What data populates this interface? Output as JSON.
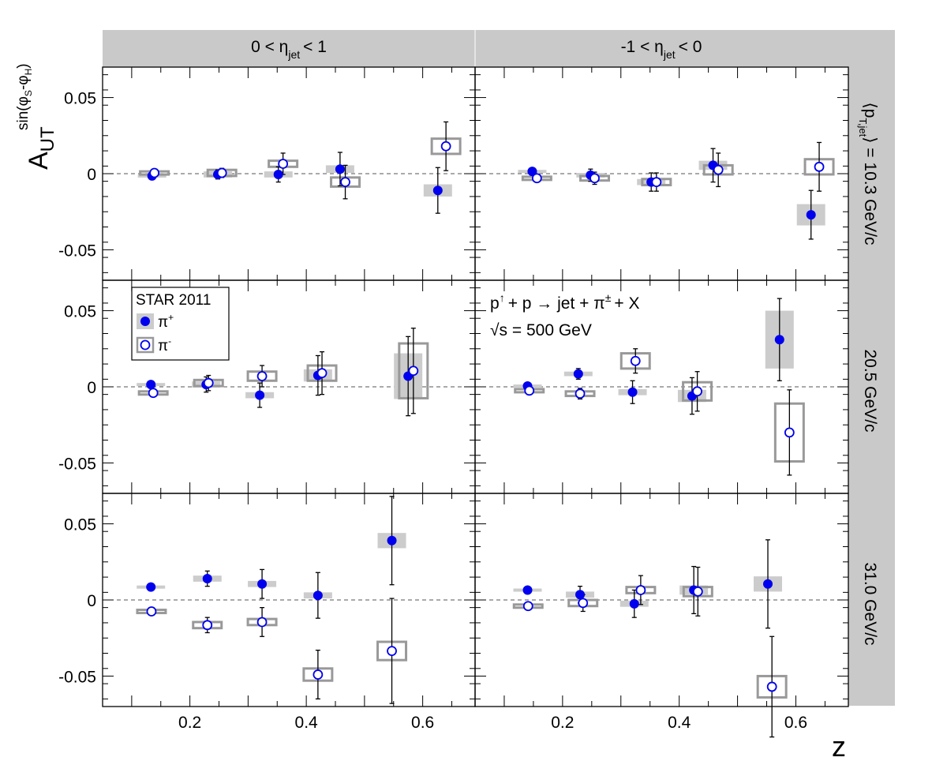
{
  "chart_data": {
    "type": "scatter",
    "experiment": "STAR 2011",
    "process_text": {
      "p1": "p",
      "p1_sup": "↑",
      "rest": "+ p → jet + π",
      "pi_sup": "±",
      "end": "+ X",
      "sqrts": "√s = 500 GeV"
    },
    "y_label": {
      "main": "A",
      "sub": "UT",
      "sup": "sin(φ",
      "sup_s": "S",
      "sup_mid": "-φ",
      "sup_h": "H",
      "sup_end": ")"
    },
    "x_label": "z",
    "xlim": [
      0.05,
      0.69
    ],
    "ylim": [
      -0.07,
      0.07
    ],
    "x_ticks": [
      0.2,
      0.4,
      0.6
    ],
    "x_tick_labels": [
      "0.2",
      "0.4",
      "0.6"
    ],
    "y_ticks": [
      -0.05,
      0,
      0.05
    ],
    "y_tick_labels": [
      "-0.05",
      "0",
      "0.05"
    ],
    "columns": [
      {
        "pre": "0 < η",
        "sub": "jet",
        "post": "< 1"
      },
      {
        "pre": "-1 < η",
        "sub": "jet",
        "post": "< 0"
      }
    ],
    "right_title": {
      "pre": "⟨p",
      "sub": "T,jet",
      "post": "⟩ = 10.3 GeV/c"
    },
    "rows": [
      {
        "label": "10.3 GeV/c"
      },
      {
        "label": "20.5 GeV/c"
      },
      {
        "label": "31.0 GeV/c"
      }
    ],
    "series": [
      {
        "name": "π",
        "sup": "+",
        "marker": "filled-circle",
        "sys_box": "filled-gray",
        "color": "#0000ee"
      },
      {
        "name": "π",
        "sup": "-",
        "marker": "open-circle",
        "sys_box": "open-gray",
        "color": "#0000ee"
      }
    ],
    "colors": {
      "marker": "#0000ee",
      "sys_fill": "#cccccc",
      "sys_line": "#999999",
      "strip": "#c9c9c9"
    },
    "panels": [
      {
        "row": 0,
        "col": 0,
        "pip": [
          {
            "x": 0.135,
            "y": -0.0015,
            "err": 0.002,
            "sys": 0.001
          },
          {
            "x": 0.248,
            "y": -0.0005,
            "err": 0.003,
            "sys": 0.002
          },
          {
            "x": 0.352,
            "y": -0.0005,
            "err": 0.005,
            "sys": 0.002
          },
          {
            "x": 0.458,
            "y": 0.003,
            "err": 0.011,
            "sys": 0.0025
          },
          {
            "x": 0.626,
            "y": -0.011,
            "err": 0.015,
            "sys": 0.004
          }
        ],
        "pim": [
          {
            "x": 0.139,
            "y": 0.0005,
            "err": 0.002,
            "sys": 0.001
          },
          {
            "x": 0.255,
            "y": 0.0005,
            "err": 0.003,
            "sys": 0.002
          },
          {
            "x": 0.36,
            "y": 0.0065,
            "err": 0.007,
            "sys": 0.002
          },
          {
            "x": 0.467,
            "y": -0.0055,
            "err": 0.011,
            "sys": 0.003
          },
          {
            "x": 0.64,
            "y": 0.018,
            "err": 0.016,
            "sys": 0.005
          }
        ]
      },
      {
        "row": 0,
        "col": 1,
        "pip": [
          {
            "x": 0.148,
            "y": 0.0015,
            "err": 0.002,
            "sys": 0.001
          },
          {
            "x": 0.248,
            "y": -0.001,
            "err": 0.004,
            "sys": 0.0015
          },
          {
            "x": 0.352,
            "y": -0.0055,
            "err": 0.006,
            "sys": 0.002
          },
          {
            "x": 0.458,
            "y": 0.0055,
            "err": 0.011,
            "sys": 0.003
          },
          {
            "x": 0.626,
            "y": -0.027,
            "err": 0.016,
            "sys": 0.007
          }
        ],
        "pim": [
          {
            "x": 0.156,
            "y": -0.003,
            "err": 0.002,
            "sys": 0.001
          },
          {
            "x": 0.255,
            "y": -0.003,
            "err": 0.004,
            "sys": 0.0015
          },
          {
            "x": 0.361,
            "y": -0.0055,
            "err": 0.006,
            "sys": 0.002
          },
          {
            "x": 0.467,
            "y": 0.0025,
            "err": 0.011,
            "sys": 0.003
          },
          {
            "x": 0.64,
            "y": 0.0045,
            "err": 0.016,
            "sys": 0.005
          }
        ]
      },
      {
        "row": 1,
        "col": 0,
        "pip": [
          {
            "x": 0.133,
            "y": 0.0015,
            "err": 0.002,
            "sys": 0.001
          },
          {
            "x": 0.228,
            "y": 0.0015,
            "err": 0.005,
            "sys": 0.002
          },
          {
            "x": 0.32,
            "y": -0.0055,
            "err": 0.008,
            "sys": 0.002
          },
          {
            "x": 0.42,
            "y": 0.0075,
            "err": 0.013,
            "sys": 0.004
          },
          {
            "x": 0.575,
            "y": 0.007,
            "err": 0.026,
            "sys": 0.015
          }
        ],
        "pim": [
          {
            "x": 0.137,
            "y": -0.004,
            "err": 0.002,
            "sys": 0.001
          },
          {
            "x": 0.232,
            "y": 0.0025,
            "err": 0.005,
            "sys": 0.002
          },
          {
            "x": 0.324,
            "y": 0.007,
            "err": 0.007,
            "sys": 0.003
          },
          {
            "x": 0.427,
            "y": 0.009,
            "err": 0.014,
            "sys": 0.005
          },
          {
            "x": 0.584,
            "y": 0.0105,
            "err": 0.028,
            "sys": 0.018
          }
        ]
      },
      {
        "row": 1,
        "col": 1,
        "pip": [
          {
            "x": 0.14,
            "y": 0.0005,
            "err": 0.002,
            "sys": 0.001
          },
          {
            "x": 0.227,
            "y": 0.0085,
            "err": 0.0035,
            "sys": 0.0015
          },
          {
            "x": 0.32,
            "y": -0.0035,
            "err": 0.0075,
            "sys": 0.002
          },
          {
            "x": 0.422,
            "y": -0.006,
            "err": 0.012,
            "sys": 0.004
          },
          {
            "x": 0.572,
            "y": 0.031,
            "err": 0.027,
            "sys": 0.019
          }
        ],
        "pim": [
          {
            "x": 0.143,
            "y": -0.0025,
            "err": 0.002,
            "sys": 0.001
          },
          {
            "x": 0.23,
            "y": -0.0045,
            "err": 0.0035,
            "sys": 0.0015
          },
          {
            "x": 0.325,
            "y": 0.017,
            "err": 0.008,
            "sys": 0.005
          },
          {
            "x": 0.431,
            "y": -0.003,
            "err": 0.013,
            "sys": 0.006
          },
          {
            "x": 0.589,
            "y": -0.03,
            "err": 0.028,
            "sys": 0.019
          }
        ]
      },
      {
        "row": 2,
        "col": 0,
        "pip": [
          {
            "x": 0.133,
            "y": 0.0085,
            "err": 0.002,
            "sys": 0.001
          },
          {
            "x": 0.23,
            "y": 0.014,
            "err": 0.005,
            "sys": 0.002
          },
          {
            "x": 0.324,
            "y": 0.0105,
            "err": 0.0095,
            "sys": 0.002
          },
          {
            "x": 0.42,
            "y": 0.003,
            "err": 0.015,
            "sys": 0.002
          },
          {
            "x": 0.547,
            "y": 0.039,
            "err": 0.029,
            "sys": 0.005
          }
        ],
        "pim": [
          {
            "x": 0.134,
            "y": -0.0075,
            "err": 0.002,
            "sys": 0.001
          },
          {
            "x": 0.23,
            "y": -0.0165,
            "err": 0.005,
            "sys": 0.002
          },
          {
            "x": 0.324,
            "y": -0.0145,
            "err": 0.0095,
            "sys": 0.002
          },
          {
            "x": 0.42,
            "y": -0.049,
            "err": 0.016,
            "sys": 0.004
          },
          {
            "x": 0.547,
            "y": -0.0335,
            "err": 0.0345,
            "sys": 0.006
          }
        ]
      },
      {
        "row": 2,
        "col": 1,
        "pip": [
          {
            "x": 0.14,
            "y": 0.0065,
            "err": 0.002,
            "sys": 0.001
          },
          {
            "x": 0.23,
            "y": 0.0035,
            "err": 0.0055,
            "sys": 0.002
          },
          {
            "x": 0.323,
            "y": -0.0025,
            "err": 0.009,
            "sys": 0.002
          },
          {
            "x": 0.425,
            "y": 0.0065,
            "err": 0.0155,
            "sys": 0.003
          },
          {
            "x": 0.552,
            "y": 0.0105,
            "err": 0.029,
            "sys": 0.005
          }
        ],
        "pim": [
          {
            "x": 0.141,
            "y": -0.004,
            "err": 0.002,
            "sys": 0.001
          },
          {
            "x": 0.235,
            "y": -0.002,
            "err": 0.0055,
            "sys": 0.002
          },
          {
            "x": 0.334,
            "y": 0.0065,
            "err": 0.0095,
            "sys": 0.002
          },
          {
            "x": 0.432,
            "y": 0.0055,
            "err": 0.016,
            "sys": 0.003
          },
          {
            "x": 0.559,
            "y": -0.057,
            "err": 0.033,
            "sys": 0.007
          }
        ]
      }
    ]
  }
}
